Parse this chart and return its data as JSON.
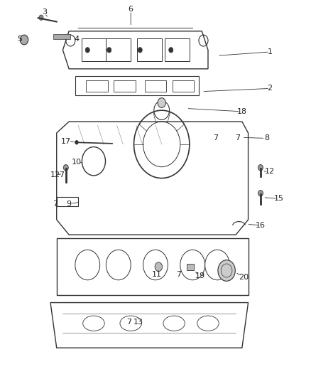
{
  "background_color": "#ffffff",
  "figsize": [
    4.38,
    5.33
  ],
  "dpi": 100,
  "line_color": "#333333",
  "label_color": "#222222",
  "label_fontsize": 8,
  "line_width": 0.6
}
